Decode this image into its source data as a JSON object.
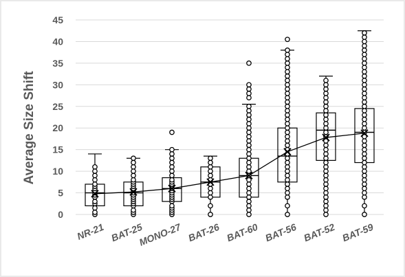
{
  "chart_data": {
    "type": "box",
    "title": "",
    "xlabel": "",
    "ylabel": "Average Size Shift",
    "ylim": [
      0,
      45
    ],
    "yticks": [
      0,
      5,
      10,
      15,
      20,
      25,
      30,
      35,
      40,
      45
    ],
    "grid": "horizontal",
    "legend": "none",
    "categories": [
      "NR-21",
      "BAT-25",
      "MONO-27",
      "BAT-26",
      "BAT-60",
      "BAT-56",
      "BAT-52",
      "BAT-59"
    ],
    "boxes": [
      {
        "name": "NR-21",
        "whisker_low": 0,
        "q1": 2,
        "median": 5,
        "q3": 7,
        "whisker_high": 14,
        "mean": 4.8
      },
      {
        "name": "BAT-25",
        "whisker_low": 0,
        "q1": 2,
        "median": 5,
        "q3": 7.5,
        "whisker_high": 13,
        "mean": 5.2
      },
      {
        "name": "MONO-27",
        "whisker_low": 0,
        "q1": 3,
        "median": 6,
        "q3": 8.5,
        "whisker_high": 15,
        "mean": 6
      },
      {
        "name": "BAT-26",
        "whisker_low": 0,
        "q1": 4,
        "median": 7.5,
        "q3": 11,
        "whisker_high": 13.5,
        "mean": 7.5
      },
      {
        "name": "BAT-60",
        "whisker_low": 0,
        "q1": 4,
        "median": 9,
        "q3": 13,
        "whisker_high": 25.5,
        "mean": 9
      },
      {
        "name": "BAT-56",
        "whisker_low": 0,
        "q1": 7.5,
        "median": 13.5,
        "q3": 20,
        "whisker_high": 38,
        "mean": 14.5
      },
      {
        "name": "BAT-52",
        "whisker_low": 0,
        "q1": 12.5,
        "median": 19.5,
        "q3": 23.5,
        "whisker_high": 32,
        "mean": 17.8
      },
      {
        "name": "BAT-59",
        "whisker_low": 0,
        "q1": 12,
        "median": 19,
        "q3": 24.5,
        "whisker_high": 42.5,
        "mean": 18.8
      }
    ],
    "points": [
      {
        "category": "NR-21",
        "values": [
          0,
          0.5,
          1.5,
          2.5,
          3,
          4,
          4.5,
          5,
          5.5,
          6,
          6.5,
          7,
          8,
          9,
          10,
          11
        ]
      },
      {
        "category": "BAT-25",
        "values": [
          0,
          0.5,
          1,
          2,
          2.5,
          3,
          3.5,
          4,
          4.5,
          5,
          5.5,
          6,
          6.5,
          7,
          7.5,
          8,
          9,
          10,
          11,
          12,
          13
        ]
      },
      {
        "category": "MONO-27",
        "values": [
          0,
          0.5,
          1,
          1.5,
          2,
          3,
          3.5,
          4,
          4.5,
          5,
          5.5,
          6,
          6.5,
          7,
          7.5,
          8,
          9,
          10,
          11,
          12,
          13,
          14,
          15,
          19
        ]
      },
      {
        "category": "BAT-26",
        "values": [
          0,
          2,
          4,
          5,
          6,
          7,
          8,
          9,
          10,
          11,
          12,
          13
        ]
      },
      {
        "category": "BAT-60",
        "values": [
          0,
          1,
          2,
          3,
          4,
          5,
          6,
          7,
          8,
          9,
          10,
          11,
          12,
          13,
          14,
          15,
          16,
          17,
          18,
          19,
          20,
          21,
          22,
          23,
          24,
          25,
          27,
          28,
          29,
          30,
          35
        ]
      },
      {
        "category": "BAT-56",
        "values": [
          0,
          2,
          4,
          5,
          6,
          7,
          8,
          9,
          10,
          11,
          12,
          13,
          14,
          15,
          16,
          17,
          18,
          19,
          20,
          21,
          22,
          23,
          24,
          25,
          26,
          27,
          28,
          29,
          30,
          31,
          32,
          33,
          34,
          35,
          36,
          37,
          38,
          40.5
        ]
      },
      {
        "category": "BAT-52",
        "values": [
          0,
          1,
          2,
          3,
          4,
          5,
          6,
          7,
          8,
          9,
          10,
          11,
          12,
          13,
          14,
          15,
          16,
          17,
          18,
          19,
          20,
          21,
          22,
          23,
          24,
          25,
          26,
          27,
          28,
          29,
          30,
          31
        ]
      },
      {
        "category": "BAT-59",
        "values": [
          0,
          2,
          4,
          5,
          6,
          7,
          8,
          9,
          10,
          11,
          12,
          13,
          14,
          15,
          16,
          17,
          18,
          19,
          20,
          21,
          22,
          23,
          24,
          25,
          26,
          27,
          28,
          29,
          30,
          31,
          32,
          33,
          34,
          35,
          36,
          37,
          38,
          39,
          40,
          41,
          42
        ]
      }
    ],
    "mean_line": true,
    "colors": {
      "frame": "#e9e9e9",
      "grid": "#d9d9d9",
      "box": "#000000",
      "text": "#595959"
    }
  }
}
